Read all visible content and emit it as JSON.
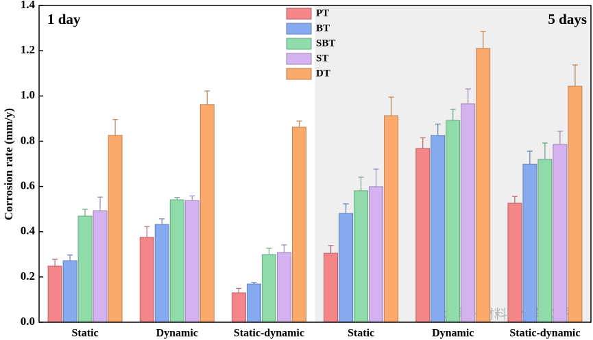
{
  "chart_data": {
    "type": "bar",
    "annotations": [
      "1 day",
      "5 days"
    ],
    "watermark": "公众号 · 材料强化与防护",
    "y_label": "Corrosion rate (mm/y)",
    "categories": [
      "Static",
      "Dynamic",
      "Static-dynamic",
      "Static",
      "Dynamic",
      "Static-dynamic"
    ],
    "series": [
      {
        "name": "PT",
        "color": "#f4868a",
        "values": [
          0.248,
          0.375,
          0.13,
          0.305,
          0.768,
          0.526
        ],
        "errors": [
          0.03,
          0.048,
          0.02,
          0.034,
          0.047,
          0.03
        ]
      },
      {
        "name": "BT",
        "color": "#86aaf0",
        "values": [
          0.272,
          0.432,
          0.169,
          0.481,
          0.826,
          0.698
        ],
        "errors": [
          0.025,
          0.025,
          0.007,
          0.042,
          0.05,
          0.058
        ]
      },
      {
        "name": "SBT",
        "color": "#8fdcaa",
        "values": [
          0.469,
          0.541,
          0.299,
          0.581,
          0.892,
          0.72
        ],
        "errors": [
          0.03,
          0.01,
          0.028,
          0.06,
          0.048,
          0.072
        ]
      },
      {
        "name": "ST",
        "color": "#d4b2f0",
        "values": [
          0.493,
          0.538,
          0.308,
          0.599,
          0.965,
          0.786
        ],
        "errors": [
          0.06,
          0.02,
          0.034,
          0.078,
          0.066,
          0.058
        ]
      },
      {
        "name": "DT",
        "color": "#fcaa6c",
        "values": [
          0.826,
          0.962,
          0.862,
          0.913,
          1.21,
          1.043
        ],
        "errors": [
          0.07,
          0.06,
          0.027,
          0.082,
          0.075,
          0.094
        ]
      }
    ],
    "ylim": [
      0,
      1.4
    ],
    "yticks": [
      {
        "value": 0,
        "label": "0.0"
      },
      0.2,
      0.4,
      0.6,
      0.8,
      {
        "value": 1,
        "label": "1.0"
      },
      1.2,
      1.4
    ],
    "legend": "upper center"
  }
}
